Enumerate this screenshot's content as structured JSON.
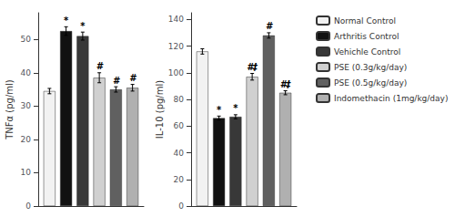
{
  "chart_data": [
    {
      "type": "bar",
      "categories": [
        null
      ],
      "ylabel": "TNFα (pg/ml)",
      "ylim": [
        0,
        58
      ],
      "yticks": [
        0,
        10,
        20,
        30,
        40,
        50
      ],
      "grid": false,
      "tick_labels": "y",
      "series": [
        {
          "name": "Normal Control",
          "color": "#f2f2f2",
          "values": [
            34.5
          ],
          "errors": [
            0.8
          ],
          "annotations": [
            null
          ]
        },
        {
          "name": "Arthritis Control",
          "color": "#111111",
          "values": [
            52.5
          ],
          "errors": [
            1.3
          ],
          "annotations": [
            "*"
          ]
        },
        {
          "name": "Vehichle Control",
          "color": "#383838",
          "values": [
            51.0
          ],
          "errors": [
            1.2
          ],
          "annotations": [
            "*"
          ]
        },
        {
          "name": "PSE (0.3g/kg/day)",
          "color": "#d0d0d0",
          "values": [
            38.5
          ],
          "errors": [
            1.5
          ],
          "annotations": [
            "#"
          ]
        },
        {
          "name": "PSE (0.5g/kg/day)",
          "color": "#606060",
          "values": [
            35.0
          ],
          "errors": [
            0.8
          ],
          "annotations": [
            "#"
          ]
        },
        {
          "name": "Indomethacin (1mg/kg/day)",
          "color": "#b0b0b0",
          "values": [
            35.5
          ],
          "errors": [
            1.0
          ],
          "annotations": [
            "#"
          ]
        }
      ]
    },
    {
      "type": "bar",
      "categories": [
        null
      ],
      "ylabel": "IL-10 (pg/ml)",
      "ylim": [
        0,
        145
      ],
      "yticks": [
        0,
        20,
        40,
        60,
        80,
        100,
        120,
        140
      ],
      "grid": false,
      "tick_labels": "y",
      "legend": "right",
      "series": [
        {
          "name": "Normal Control",
          "color": "#f2f2f2",
          "values": [
            116
          ],
          "errors": [
            2.0
          ],
          "annotations": [
            null
          ]
        },
        {
          "name": "Arthritis Control",
          "color": "#111111",
          "values": [
            66
          ],
          "errors": [
            1.5
          ],
          "annotations": [
            "*"
          ]
        },
        {
          "name": "Vehichle Control",
          "color": "#383838",
          "values": [
            67
          ],
          "errors": [
            1.5
          ],
          "annotations": [
            "*"
          ]
        },
        {
          "name": "PSE (0.3g/kg/day)",
          "color": "#d0d0d0",
          "values": [
            97
          ],
          "errors": [
            2.5
          ],
          "annotations": [
            "#‡"
          ]
        },
        {
          "name": "PSE (0.5g/kg/day)",
          "color": "#606060",
          "values": [
            128
          ],
          "errors": [
            2.0
          ],
          "annotations": [
            "#"
          ]
        },
        {
          "name": "Indomethacin (1mg/kg/day)",
          "color": "#b0b0b0",
          "values": [
            85
          ],
          "errors": [
            1.5
          ],
          "annotations": [
            "#‡"
          ]
        }
      ]
    }
  ]
}
